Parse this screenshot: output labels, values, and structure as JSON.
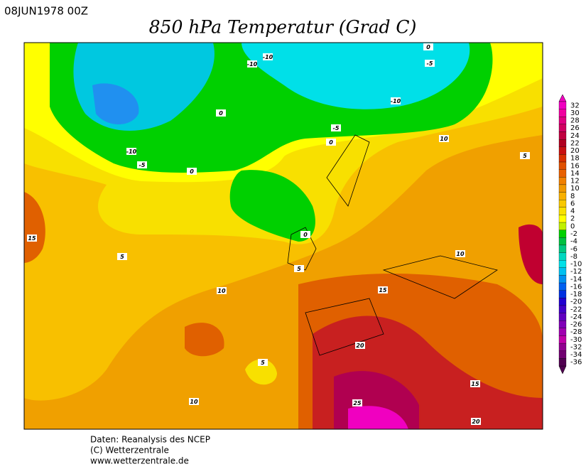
{
  "header": {
    "date": "08JUN1978 00Z",
    "title": "850 hPa Temperatur (Grad C)"
  },
  "map": {
    "contour_labels": [
      "0",
      "-5",
      "-10",
      "-10",
      "-10",
      "0",
      "-5",
      "0",
      "10",
      "5",
      "-10",
      "-5",
      "0",
      "15",
      "0",
      "10",
      "5",
      "5",
      "10",
      "15",
      "20",
      "5",
      "15",
      "10",
      "25",
      "20"
    ]
  },
  "colorbar": {
    "labels": [
      "32",
      "30",
      "28",
      "26",
      "24",
      "22",
      "20",
      "18",
      "16",
      "14",
      "12",
      "10",
      "8",
      "6",
      "4",
      "2",
      "0",
      "-2",
      "-4",
      "-6",
      "-8",
      "-10",
      "-12",
      "-14",
      "-16",
      "-18",
      "-20",
      "-22",
      "-24",
      "-26",
      "-28",
      "-30",
      "-32",
      "-34",
      "-36"
    ]
  },
  "footer": {
    "lines": [
      "Daten: Reanalysis des NCEP",
      "(C) Wetterzentrale",
      "www.wetterzentrale.de"
    ]
  }
}
